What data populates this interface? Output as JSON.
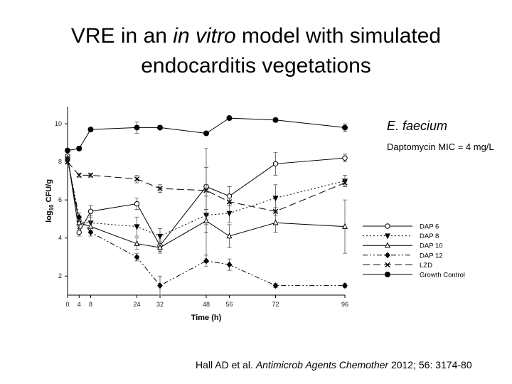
{
  "slide": {
    "title_line1_pre": "VRE in an ",
    "title_line1_italic": "in vitro",
    "title_line1_post": " model with simulated",
    "title_line2": "endocarditis vegetations",
    "organism": "E. faecium",
    "mic_note": "Daptomycin MIC = 4 mg/L",
    "citation_pre": "Hall AD et al. ",
    "citation_journal": "Antimicrob Agents Chemother",
    "citation_post": " 2012; 56: 3174-80"
  },
  "chart_data": {
    "type": "line",
    "title": "",
    "xlabel": "Time (h)",
    "ylabel_prefix": "log",
    "ylabel_sub": "10",
    "ylabel_suffix": " CFU/g",
    "x": [
      0,
      4,
      8,
      24,
      32,
      48,
      56,
      72,
      96
    ],
    "xticks": [
      0,
      4,
      8,
      24,
      32,
      48,
      56,
      72,
      96
    ],
    "yticks": [
      2,
      4,
      6,
      8,
      10
    ],
    "xlim": [
      0,
      96
    ],
    "ylim": [
      1,
      10.9
    ],
    "legend_position": "bottom-right",
    "series": [
      {
        "name": "DAP 6",
        "marker": "circle-open",
        "dash": "solid",
        "values": [
          8.3,
          4.3,
          5.4,
          5.8,
          3.6,
          6.7,
          6.2,
          7.9,
          8.2
        ],
        "errors": [
          0.1,
          0.2,
          0.3,
          0.3,
          0.3,
          2.0,
          0.5,
          0.6,
          0.2
        ]
      },
      {
        "name": "DAP 8",
        "marker": "triangle-down-filled",
        "dash": "dotted",
        "values": [
          8.1,
          4.8,
          4.8,
          4.6,
          4.1,
          5.2,
          5.3,
          6.1,
          7.0
        ],
        "errors": [
          0.1,
          0.3,
          0.4,
          0.5,
          0.4,
          2.5,
          0.5,
          0.7,
          0.3
        ]
      },
      {
        "name": "DAP 10",
        "marker": "triangle-up-open",
        "dash": "solid",
        "values": [
          8.2,
          4.8,
          4.6,
          3.7,
          3.5,
          4.9,
          4.1,
          4.8,
          4.6
        ],
        "errors": [
          0.1,
          0.3,
          0.3,
          0.3,
          0.3,
          0.6,
          0.6,
          0.5,
          1.4
        ]
      },
      {
        "name": "DAP 12",
        "marker": "diamond-filled",
        "dash": "dashdotdot",
        "values": [
          8.1,
          5.1,
          4.3,
          3.0,
          1.5,
          2.8,
          2.6,
          1.5,
          1.5
        ],
        "errors": [
          0.1,
          0.2,
          0.2,
          0.2,
          0.5,
          0.3,
          0.3,
          0.1,
          0.1
        ]
      },
      {
        "name": "LZD",
        "marker": "x-cross",
        "dash": "longdash",
        "values": [
          8.0,
          7.3,
          7.3,
          7.1,
          6.6,
          6.5,
          5.9,
          5.4,
          6.9
        ],
        "errors": [
          0.1,
          0.1,
          0.1,
          0.2,
          0.2,
          0.3,
          0.2,
          0.2,
          0.2
        ]
      },
      {
        "name": "Growth Control",
        "marker": "circle-filled",
        "dash": "solid",
        "values": [
          8.6,
          8.7,
          9.7,
          9.8,
          9.8,
          9.5,
          10.3,
          10.2,
          9.8
        ],
        "errors": [
          0.1,
          0.1,
          0.1,
          0.3,
          0.1,
          0.1,
          0.1,
          0.1,
          0.2
        ]
      }
    ]
  }
}
